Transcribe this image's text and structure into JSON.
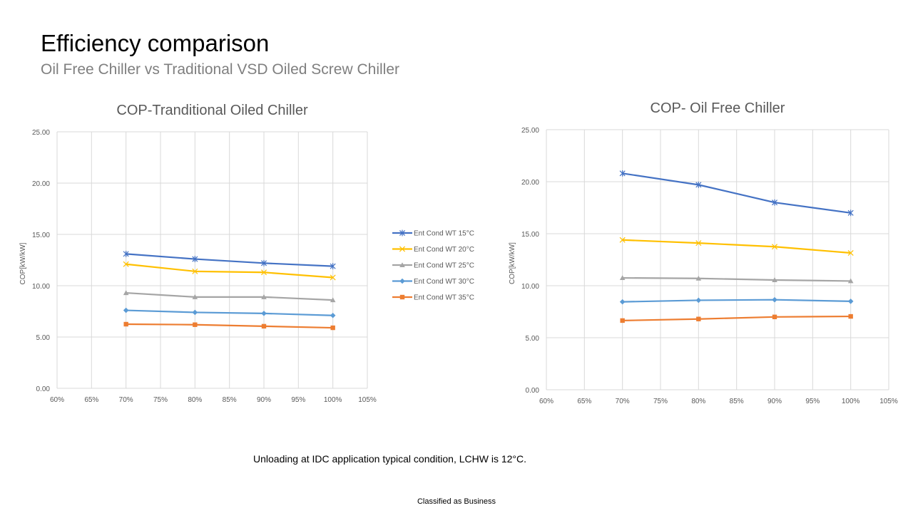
{
  "slide": {
    "title": "Efficiency comparison",
    "subtitle": "Oil Free Chiller vs Traditional VSD Oiled Screw Chiller",
    "footnote": "Unloading at IDC application typical condition,  LCHW is 12°C.",
    "classification": "Classified as Business"
  },
  "colors": {
    "grid": "#d9d9d9",
    "text": "#595959"
  },
  "chart_data": [
    {
      "type": "line",
      "title": "COP-Tranditional Oiled Chiller",
      "ylabel": "COP[kW/kW]",
      "xlabel": "",
      "x": [
        0.7,
        0.8,
        0.9,
        1.0
      ],
      "xlim": [
        0.6,
        1.05
      ],
      "x_ticks": [
        "60%",
        "65%",
        "70%",
        "75%",
        "80%",
        "85%",
        "90%",
        "95%",
        "100%",
        "105%"
      ],
      "ylim": [
        0,
        25
      ],
      "y_ticks": [
        "0.00",
        "5.00",
        "10.00",
        "15.00",
        "20.00",
        "25.00"
      ],
      "grid": true,
      "legend_position": "right",
      "series": [
        {
          "name": "Ent Cond WT 15°C",
          "color": "#4472c4",
          "marker": "star",
          "values": [
            13.1,
            12.6,
            12.2,
            11.9
          ]
        },
        {
          "name": "Ent Cond WT 20°C",
          "color": "#ffc000",
          "marker": "x",
          "values": [
            12.1,
            11.4,
            11.3,
            10.8
          ]
        },
        {
          "name": "Ent Cond WT 25°C",
          "color": "#a5a5a5",
          "marker": "triangle",
          "values": [
            9.3,
            8.9,
            8.9,
            8.6
          ]
        },
        {
          "name": "Ent Cond WT 30°C",
          "color": "#5b9bd5",
          "marker": "diamond",
          "values": [
            7.6,
            7.4,
            7.3,
            7.1
          ]
        },
        {
          "name": "Ent Cond WT 35°C",
          "color": "#ed7d31",
          "marker": "square",
          "values": [
            6.25,
            6.2,
            6.05,
            5.9
          ]
        }
      ]
    },
    {
      "type": "line",
      "title": "COP- Oil Free Chiller",
      "ylabel": "COP[kW/kW]",
      "xlabel": "",
      "x": [
        0.7,
        0.8,
        0.9,
        1.0
      ],
      "xlim": [
        0.6,
        1.05
      ],
      "x_ticks": [
        "60%",
        "65%",
        "70%",
        "75%",
        "80%",
        "85%",
        "90%",
        "95%",
        "100%",
        "105%"
      ],
      "ylim": [
        0,
        25
      ],
      "y_ticks": [
        "0.00",
        "5.00",
        "10.00",
        "15.00",
        "20.00",
        "25.00"
      ],
      "grid": true,
      "series": [
        {
          "color": "#4472c4",
          "marker": "star",
          "values": [
            20.8,
            19.7,
            18.0,
            17.0
          ]
        },
        {
          "color": "#ffc000",
          "marker": "x",
          "values": [
            14.4,
            14.1,
            13.75,
            13.15
          ]
        },
        {
          "color": "#a5a5a5",
          "marker": "triangle",
          "values": [
            10.75,
            10.7,
            10.55,
            10.45
          ]
        },
        {
          "color": "#5b9bd5",
          "marker": "diamond",
          "values": [
            8.45,
            8.6,
            8.65,
            8.5
          ]
        },
        {
          "color": "#ed7d31",
          "marker": "square",
          "values": [
            6.65,
            6.8,
            7.0,
            7.05
          ]
        }
      ]
    }
  ]
}
